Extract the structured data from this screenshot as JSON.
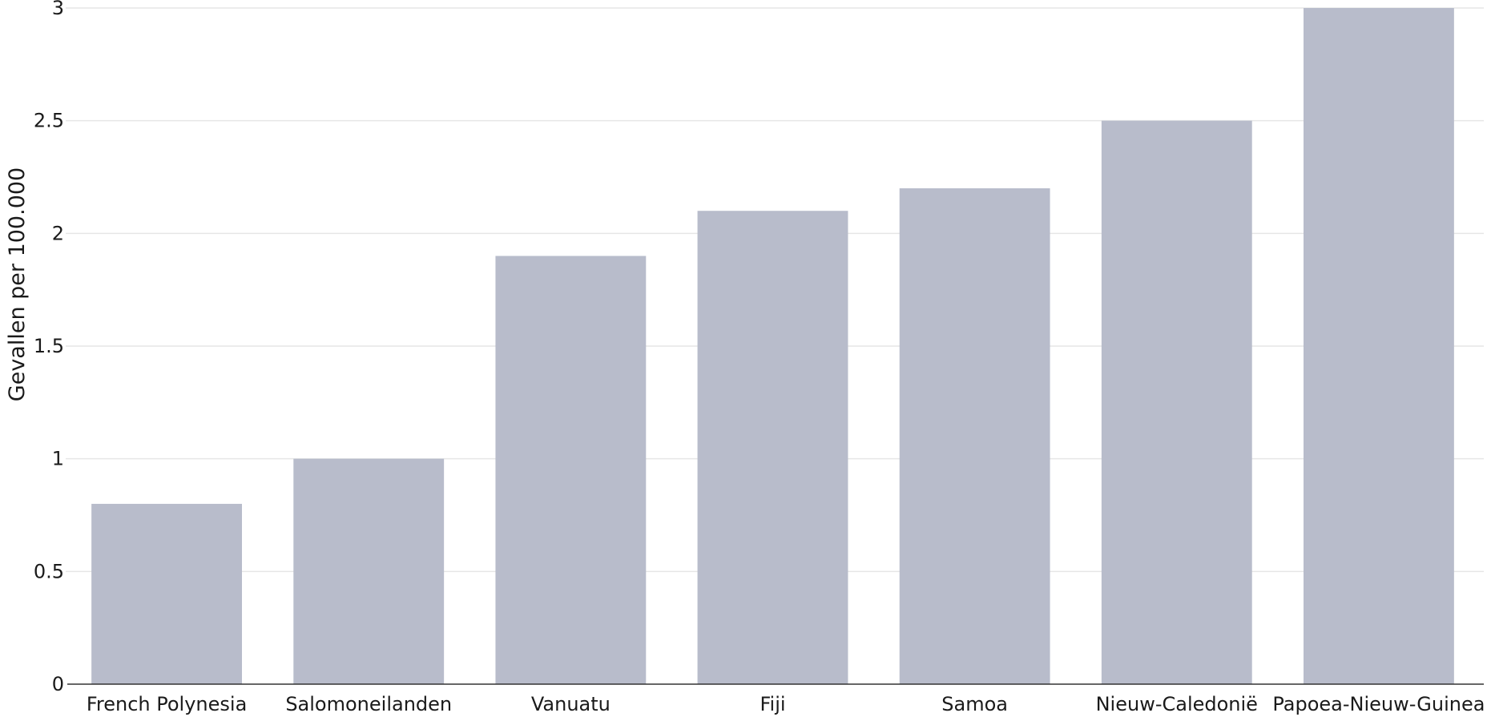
{
  "chart_data": {
    "type": "bar",
    "categories": [
      "French Polynesia",
      "Salomoneilanden",
      "Vanuatu",
      "Fiji",
      "Samoa",
      "Nieuw-Caledonië",
      "Papoea-Nieuw-Guinea"
    ],
    "values": [
      0.8,
      1.0,
      1.9,
      2.1,
      2.2,
      2.5,
      3.0
    ],
    "ylabel": "Gevallen per 100.000",
    "xlabel": "",
    "ylim": [
      0,
      3
    ],
    "yticks": [
      0,
      0.5,
      1,
      1.5,
      2,
      2.5,
      3
    ],
    "ytick_labels": [
      "0",
      "0.5",
      "1",
      "1.5",
      "2",
      "2.5",
      "3"
    ],
    "grid": true,
    "bar_color": "#b8bccb"
  }
}
